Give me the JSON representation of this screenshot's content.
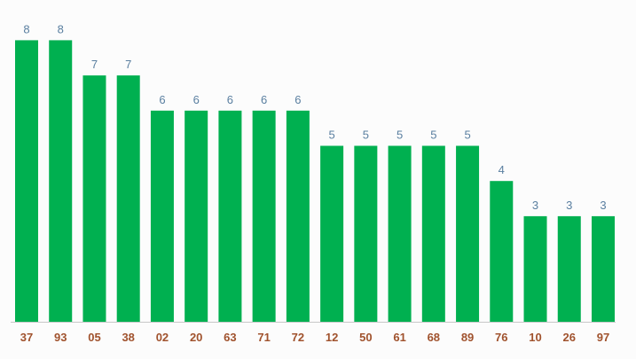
{
  "chart_data": {
    "type": "bar",
    "title": "",
    "xlabel": "",
    "ylabel": "",
    "categories": [
      "37",
      "93",
      "05",
      "38",
      "02",
      "20",
      "63",
      "71",
      "72",
      "12",
      "50",
      "61",
      "68",
      "89",
      "76",
      "10",
      "26",
      "97"
    ],
    "values": [
      8,
      8,
      7,
      7,
      6,
      6,
      6,
      6,
      6,
      5,
      5,
      5,
      5,
      5,
      4,
      3,
      3,
      3
    ],
    "ylim": [
      0,
      8
    ],
    "grid": false,
    "legend": "none",
    "colors": {
      "bar": "#00b050",
      "value_label": "#5a7fa0",
      "tick_label": "#a0522d",
      "axis": "#c8c8c8",
      "background": "#fcfcfc"
    }
  }
}
